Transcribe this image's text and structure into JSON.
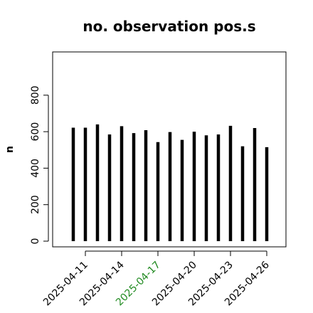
{
  "chart_data": {
    "type": "bar",
    "title": "no. observation pos.s",
    "ylabel": "n",
    "xlabel": "",
    "x": [
      "2025-04-10",
      "2025-04-11",
      "2025-04-12",
      "2025-04-13",
      "2025-04-14",
      "2025-04-15",
      "2025-04-16",
      "2025-04-17",
      "2025-04-18",
      "2025-04-19",
      "2025-04-20",
      "2025-04-21",
      "2025-04-22",
      "2025-04-23",
      "2025-04-24",
      "2025-04-25",
      "2025-04-26"
    ],
    "values": [
      622,
      622,
      640,
      585,
      630,
      592,
      608,
      543,
      598,
      555,
      600,
      580,
      585,
      632,
      520,
      620,
      515
    ],
    "ylim": [
      0,
      1000
    ],
    "yticks": [
      0,
      200,
      400,
      600,
      800
    ],
    "xtick_labels": [
      {
        "date": "2025-04-11",
        "label": "2025-04-11",
        "color": "#000000"
      },
      {
        "date": "2025-04-14",
        "label": "2025-04-14",
        "color": "#000000"
      },
      {
        "date": "2025-04-17",
        "label": "2025-04-17",
        "color": "#228B22"
      },
      {
        "date": "2025-04-20",
        "label": "2025-04-20",
        "color": "#000000"
      },
      {
        "date": "2025-04-23",
        "label": "2025-04-23",
        "color": "#000000"
      },
      {
        "date": "2025-04-26",
        "label": "2025-04-26",
        "color": "#000000"
      }
    ],
    "bar_color": "#000000",
    "grid": false
  }
}
